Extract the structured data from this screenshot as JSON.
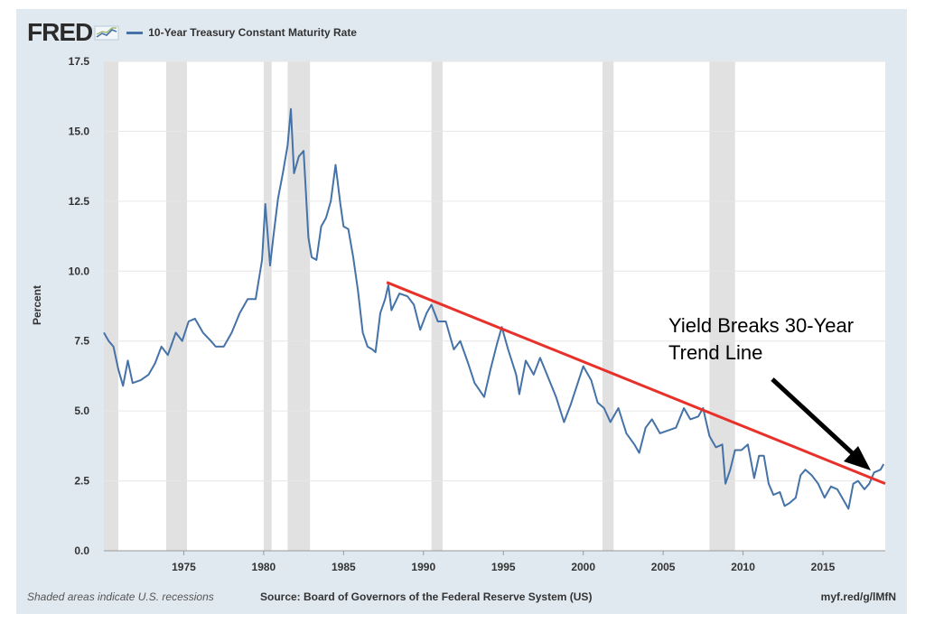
{
  "header": {
    "logo": "FRED",
    "series_title": "10-Year Treasury Constant Maturity Rate"
  },
  "footer": {
    "note": "Shaded areas indicate U.S. recessions",
    "source": "Source: Board of Governors of the Federal Reserve System (US)",
    "link": "myf.red/g/lMfN"
  },
  "annotation": {
    "line1": "Yield Breaks 30-Year",
    "line2": "Trend Line"
  },
  "colors": {
    "series": "#4572a7",
    "trend": "#e8312a",
    "recession": "#e1e1e1",
    "background": "#e1e9f0"
  },
  "chart_data": {
    "type": "line",
    "title": "10-Year Treasury Constant Maturity Rate",
    "xlabel": "",
    "ylabel": "Percent",
    "xlim": [
      1970.0,
      2018.9
    ],
    "ylim": [
      0,
      17.5
    ],
    "x_ticks": [
      "1975",
      "1980",
      "1985",
      "1990",
      "1995",
      "2000",
      "2005",
      "2010",
      "2015"
    ],
    "y_ticks": [
      "0.0",
      "2.5",
      "5.0",
      "7.5",
      "10.0",
      "12.5",
      "15.0",
      "17.5"
    ],
    "grid": true,
    "legend": "top-left",
    "recessions": [
      [
        1970.0,
        1970.9
      ],
      [
        1973.9,
        1975.2
      ],
      [
        1980.0,
        1980.5
      ],
      [
        1981.5,
        1982.9
      ],
      [
        1990.5,
        1991.2
      ],
      [
        2001.2,
        2001.9
      ],
      [
        2007.9,
        2009.5
      ]
    ],
    "series": [
      {
        "name": "10-Year Treasury Constant Maturity Rate",
        "points": [
          [
            1970.0,
            7.8
          ],
          [
            1970.3,
            7.5
          ],
          [
            1970.6,
            7.3
          ],
          [
            1970.9,
            6.5
          ],
          [
            1971.2,
            5.9
          ],
          [
            1971.5,
            6.8
          ],
          [
            1971.8,
            6.0
          ],
          [
            1972.3,
            6.1
          ],
          [
            1972.8,
            6.3
          ],
          [
            1973.2,
            6.7
          ],
          [
            1973.6,
            7.3
          ],
          [
            1974.0,
            7.0
          ],
          [
            1974.5,
            7.8
          ],
          [
            1974.9,
            7.5
          ],
          [
            1975.3,
            8.2
          ],
          [
            1975.7,
            8.3
          ],
          [
            1976.2,
            7.8
          ],
          [
            1976.7,
            7.5
          ],
          [
            1977.0,
            7.3
          ],
          [
            1977.5,
            7.3
          ],
          [
            1978.0,
            7.8
          ],
          [
            1978.5,
            8.5
          ],
          [
            1979.0,
            9.0
          ],
          [
            1979.5,
            9.0
          ],
          [
            1979.9,
            10.4
          ],
          [
            1980.1,
            12.4
          ],
          [
            1980.4,
            10.2
          ],
          [
            1980.6,
            11.2
          ],
          [
            1980.9,
            12.6
          ],
          [
            1981.2,
            13.5
          ],
          [
            1981.5,
            14.5
          ],
          [
            1981.7,
            15.8
          ],
          [
            1981.9,
            13.5
          ],
          [
            1982.2,
            14.1
          ],
          [
            1982.5,
            14.3
          ],
          [
            1982.8,
            11.2
          ],
          [
            1983.0,
            10.5
          ],
          [
            1983.3,
            10.4
          ],
          [
            1983.6,
            11.6
          ],
          [
            1983.9,
            11.9
          ],
          [
            1984.2,
            12.5
          ],
          [
            1984.5,
            13.8
          ],
          [
            1984.8,
            12.4
          ],
          [
            1985.0,
            11.6
          ],
          [
            1985.3,
            11.5
          ],
          [
            1985.6,
            10.5
          ],
          [
            1985.9,
            9.3
          ],
          [
            1986.2,
            7.8
          ],
          [
            1986.5,
            7.3
          ],
          [
            1986.8,
            7.2
          ],
          [
            1987.0,
            7.1
          ],
          [
            1987.3,
            8.5
          ],
          [
            1987.6,
            9.0
          ],
          [
            1987.8,
            9.5
          ],
          [
            1988.0,
            8.6
          ],
          [
            1988.5,
            9.2
          ],
          [
            1989.0,
            9.1
          ],
          [
            1989.4,
            8.8
          ],
          [
            1989.8,
            7.9
          ],
          [
            1990.2,
            8.5
          ],
          [
            1990.5,
            8.8
          ],
          [
            1990.9,
            8.2
          ],
          [
            1991.4,
            8.2
          ],
          [
            1991.9,
            7.2
          ],
          [
            1992.3,
            7.5
          ],
          [
            1992.8,
            6.7
          ],
          [
            1993.2,
            6.0
          ],
          [
            1993.8,
            5.5
          ],
          [
            1994.2,
            6.5
          ],
          [
            1994.6,
            7.4
          ],
          [
            1994.9,
            8.0
          ],
          [
            1995.3,
            7.2
          ],
          [
            1995.8,
            6.3
          ],
          [
            1996.0,
            5.6
          ],
          [
            1996.4,
            6.8
          ],
          [
            1996.9,
            6.3
          ],
          [
            1997.3,
            6.9
          ],
          [
            1997.8,
            6.2
          ],
          [
            1998.3,
            5.5
          ],
          [
            1998.8,
            4.6
          ],
          [
            1999.2,
            5.2
          ],
          [
            1999.6,
            5.9
          ],
          [
            2000.0,
            6.6
          ],
          [
            2000.5,
            6.1
          ],
          [
            2000.9,
            5.3
          ],
          [
            2001.3,
            5.1
          ],
          [
            2001.7,
            4.6
          ],
          [
            2002.2,
            5.1
          ],
          [
            2002.7,
            4.2
          ],
          [
            2003.2,
            3.8
          ],
          [
            2003.5,
            3.5
          ],
          [
            2003.9,
            4.4
          ],
          [
            2004.3,
            4.7
          ],
          [
            2004.8,
            4.2
          ],
          [
            2005.3,
            4.3
          ],
          [
            2005.8,
            4.4
          ],
          [
            2006.3,
            5.1
          ],
          [
            2006.7,
            4.7
          ],
          [
            2007.2,
            4.8
          ],
          [
            2007.5,
            5.1
          ],
          [
            2007.9,
            4.1
          ],
          [
            2008.3,
            3.7
          ],
          [
            2008.7,
            3.8
          ],
          [
            2008.9,
            2.4
          ],
          [
            2009.2,
            2.9
          ],
          [
            2009.5,
            3.6
          ],
          [
            2009.9,
            3.6
          ],
          [
            2010.3,
            3.8
          ],
          [
            2010.7,
            2.6
          ],
          [
            2011.0,
            3.4
          ],
          [
            2011.3,
            3.4
          ],
          [
            2011.6,
            2.4
          ],
          [
            2011.9,
            2.0
          ],
          [
            2012.3,
            2.1
          ],
          [
            2012.6,
            1.6
          ],
          [
            2012.9,
            1.7
          ],
          [
            2013.3,
            1.9
          ],
          [
            2013.6,
            2.7
          ],
          [
            2013.9,
            2.9
          ],
          [
            2014.3,
            2.7
          ],
          [
            2014.7,
            2.4
          ],
          [
            2015.1,
            1.9
          ],
          [
            2015.5,
            2.3
          ],
          [
            2015.9,
            2.2
          ],
          [
            2016.3,
            1.8
          ],
          [
            2016.6,
            1.5
          ],
          [
            2016.9,
            2.4
          ],
          [
            2017.2,
            2.5
          ],
          [
            2017.6,
            2.2
          ],
          [
            2017.9,
            2.4
          ],
          [
            2018.2,
            2.8
          ],
          [
            2018.6,
            2.9
          ],
          [
            2018.8,
            3.1
          ]
        ]
      }
    ],
    "trend_line": [
      [
        1987.7,
        9.6
      ],
      [
        2018.9,
        2.4
      ]
    ]
  }
}
